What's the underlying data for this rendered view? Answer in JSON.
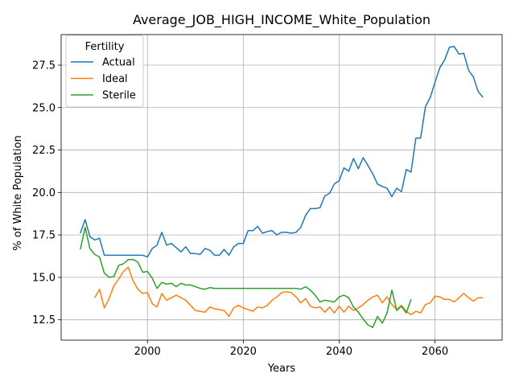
{
  "chart_data": {
    "type": "line",
    "title": "Average_JOB_HIGH_INCOME_White_Population",
    "xlabel": "Years",
    "ylabel": "% of White Population",
    "xlim": [
      1982,
      2074
    ],
    "ylim": [
      11.3,
      29.3
    ],
    "xticks": [
      2000,
      2020,
      2040,
      2060
    ],
    "yticks": [
      12.5,
      15.0,
      17.5,
      20.0,
      22.5,
      25.0,
      27.5
    ],
    "grid": true,
    "legend": {
      "title": "Fertility",
      "placement": "top-left"
    },
    "series": [
      {
        "name": "Actual",
        "color": "#1f77b4",
        "points": [
          [
            1986,
            17.6
          ],
          [
            1987,
            18.4
          ],
          [
            1988,
            17.4
          ],
          [
            1989,
            17.2
          ],
          [
            1990,
            17.3
          ],
          [
            1991,
            16.3
          ],
          [
            1992,
            16.3
          ],
          [
            1993,
            16.3
          ],
          [
            1994,
            16.3
          ],
          [
            1995,
            16.3
          ],
          [
            1996,
            16.3
          ],
          [
            1997,
            16.3
          ],
          [
            1998,
            16.3
          ],
          [
            1999,
            16.3
          ],
          [
            2000,
            16.2
          ],
          [
            2001,
            16.7
          ],
          [
            2002,
            16.9
          ],
          [
            2003,
            17.65
          ],
          [
            2004,
            16.9
          ],
          [
            2005,
            17.0
          ],
          [
            2006,
            16.75
          ],
          [
            2007,
            16.5
          ],
          [
            2008,
            16.8
          ],
          [
            2009,
            16.4
          ],
          [
            2010,
            16.4
          ],
          [
            2011,
            16.35
          ],
          [
            2012,
            16.7
          ],
          [
            2013,
            16.6
          ],
          [
            2014,
            16.3
          ],
          [
            2015,
            16.3
          ],
          [
            2016,
            16.65
          ],
          [
            2017,
            16.3
          ],
          [
            2018,
            16.8
          ],
          [
            2019,
            17.0
          ],
          [
            2020,
            17.0
          ],
          [
            2021,
            17.75
          ],
          [
            2022,
            17.75
          ],
          [
            2023,
            18.0
          ],
          [
            2024,
            17.6
          ],
          [
            2025,
            17.7
          ],
          [
            2026,
            17.75
          ],
          [
            2027,
            17.5
          ],
          [
            2028,
            17.65
          ],
          [
            2029,
            17.65
          ],
          [
            2030,
            17.6
          ],
          [
            2031,
            17.65
          ],
          [
            2032,
            17.95
          ],
          [
            2033,
            18.65
          ],
          [
            2034,
            19.05
          ],
          [
            2035,
            19.05
          ],
          [
            2036,
            19.1
          ],
          [
            2037,
            19.8
          ],
          [
            2038,
            19.95
          ],
          [
            2039,
            20.5
          ],
          [
            2040,
            20.7
          ],
          [
            2041,
            21.45
          ],
          [
            2042,
            21.25
          ],
          [
            2043,
            22.0
          ],
          [
            2044,
            21.4
          ],
          [
            2045,
            22.05
          ],
          [
            2046,
            21.6
          ],
          [
            2047,
            21.1
          ],
          [
            2048,
            20.5
          ],
          [
            2049,
            20.35
          ],
          [
            2050,
            20.25
          ],
          [
            2051,
            19.75
          ],
          [
            2052,
            20.25
          ],
          [
            2053,
            20.05
          ],
          [
            2054,
            21.35
          ],
          [
            2055,
            21.2
          ],
          [
            2056,
            23.2
          ],
          [
            2057,
            23.2
          ],
          [
            2058,
            25.05
          ],
          [
            2059,
            25.6
          ],
          [
            2060,
            26.5
          ],
          [
            2061,
            27.35
          ],
          [
            2062,
            27.8
          ],
          [
            2063,
            28.55
          ],
          [
            2064,
            28.6
          ],
          [
            2065,
            28.15
          ],
          [
            2066,
            28.2
          ],
          [
            2067,
            27.2
          ],
          [
            2068,
            26.8
          ],
          [
            2069,
            25.95
          ],
          [
            2070,
            25.6
          ]
        ]
      },
      {
        "name": "Ideal",
        "color": "#ff7f0e",
        "points": [
          [
            1989,
            13.8
          ],
          [
            1990,
            14.3
          ],
          [
            1991,
            13.2
          ],
          [
            1992,
            13.75
          ],
          [
            1993,
            14.5
          ],
          [
            1994,
            14.9
          ],
          [
            1995,
            15.35
          ],
          [
            1996,
            15.6
          ],
          [
            1997,
            14.8
          ],
          [
            1998,
            14.3
          ],
          [
            1999,
            14.05
          ],
          [
            2000,
            14.1
          ],
          [
            2001,
            13.45
          ],
          [
            2002,
            13.25
          ],
          [
            2003,
            14.05
          ],
          [
            2004,
            13.65
          ],
          [
            2005,
            13.8
          ],
          [
            2006,
            13.95
          ],
          [
            2007,
            13.8
          ],
          [
            2008,
            13.65
          ],
          [
            2009,
            13.35
          ],
          [
            2010,
            13.05
          ],
          [
            2011,
            13.0
          ],
          [
            2012,
            12.95
          ],
          [
            2013,
            13.25
          ],
          [
            2014,
            13.15
          ],
          [
            2015,
            13.1
          ],
          [
            2016,
            13.05
          ],
          [
            2017,
            12.7
          ],
          [
            2018,
            13.2
          ],
          [
            2019,
            13.35
          ],
          [
            2020,
            13.2
          ],
          [
            2021,
            13.1
          ],
          [
            2022,
            13.0
          ],
          [
            2023,
            13.25
          ],
          [
            2024,
            13.2
          ],
          [
            2025,
            13.35
          ],
          [
            2026,
            13.65
          ],
          [
            2027,
            13.85
          ],
          [
            2028,
            14.1
          ],
          [
            2029,
            14.15
          ],
          [
            2030,
            14.1
          ],
          [
            2031,
            13.85
          ],
          [
            2032,
            13.5
          ],
          [
            2033,
            13.75
          ],
          [
            2034,
            13.3
          ],
          [
            2035,
            13.2
          ],
          [
            2036,
            13.25
          ],
          [
            2037,
            12.95
          ],
          [
            2038,
            13.25
          ],
          [
            2039,
            12.9
          ],
          [
            2040,
            13.3
          ],
          [
            2041,
            12.95
          ],
          [
            2042,
            13.3
          ],
          [
            2043,
            13.05
          ],
          [
            2044,
            13.2
          ],
          [
            2045,
            13.4
          ],
          [
            2046,
            13.65
          ],
          [
            2047,
            13.85
          ],
          [
            2048,
            13.95
          ],
          [
            2049,
            13.5
          ],
          [
            2050,
            13.85
          ],
          [
            2051,
            13.4
          ],
          [
            2052,
            13.1
          ],
          [
            2053,
            13.35
          ],
          [
            2054,
            13.0
          ],
          [
            2055,
            12.8
          ],
          [
            2056,
            13.0
          ],
          [
            2057,
            12.9
          ],
          [
            2058,
            13.4
          ],
          [
            2059,
            13.5
          ],
          [
            2060,
            13.9
          ],
          [
            2061,
            13.85
          ],
          [
            2062,
            13.7
          ],
          [
            2063,
            13.7
          ],
          [
            2064,
            13.55
          ],
          [
            2065,
            13.8
          ],
          [
            2066,
            14.05
          ],
          [
            2067,
            13.8
          ],
          [
            2068,
            13.6
          ],
          [
            2069,
            13.8
          ],
          [
            2070,
            13.8
          ]
        ]
      },
      {
        "name": "Sterile",
        "color": "#2ca02c",
        "points": [
          [
            1986,
            16.65
          ],
          [
            1987,
            17.95
          ],
          [
            1988,
            16.7
          ],
          [
            1989,
            16.35
          ],
          [
            1990,
            16.2
          ],
          [
            1991,
            15.25
          ],
          [
            1992,
            15.0
          ],
          [
            1993,
            15.05
          ],
          [
            1994,
            15.7
          ],
          [
            1995,
            15.8
          ],
          [
            1996,
            16.05
          ],
          [
            1997,
            16.05
          ],
          [
            1998,
            15.9
          ],
          [
            1999,
            15.3
          ],
          [
            2000,
            15.35
          ],
          [
            2001,
            14.95
          ],
          [
            2002,
            14.35
          ],
          [
            2003,
            14.7
          ],
          [
            2004,
            14.6
          ],
          [
            2005,
            14.65
          ],
          [
            2006,
            14.45
          ],
          [
            2007,
            14.65
          ],
          [
            2008,
            14.55
          ],
          [
            2009,
            14.55
          ],
          [
            2010,
            14.45
          ],
          [
            2011,
            14.35
          ],
          [
            2012,
            14.3
          ],
          [
            2013,
            14.4
          ],
          [
            2014,
            14.35
          ],
          [
            2015,
            14.35
          ],
          [
            2016,
            14.35
          ],
          [
            2017,
            14.35
          ],
          [
            2018,
            14.35
          ],
          [
            2019,
            14.35
          ],
          [
            2020,
            14.35
          ],
          [
            2021,
            14.35
          ],
          [
            2022,
            14.35
          ],
          [
            2023,
            14.35
          ],
          [
            2024,
            14.35
          ],
          [
            2025,
            14.35
          ],
          [
            2026,
            14.35
          ],
          [
            2027,
            14.35
          ],
          [
            2028,
            14.35
          ],
          [
            2029,
            14.35
          ],
          [
            2030,
            14.35
          ],
          [
            2031,
            14.35
          ],
          [
            2032,
            14.3
          ],
          [
            2033,
            14.45
          ],
          [
            2034,
            14.25
          ],
          [
            2035,
            13.95
          ],
          [
            2036,
            13.55
          ],
          [
            2037,
            13.65
          ],
          [
            2038,
            13.6
          ],
          [
            2039,
            13.55
          ],
          [
            2040,
            13.85
          ],
          [
            2041,
            13.95
          ],
          [
            2042,
            13.8
          ],
          [
            2043,
            13.25
          ],
          [
            2044,
            12.95
          ],
          [
            2045,
            12.55
          ],
          [
            2046,
            12.2
          ],
          [
            2047,
            12.05
          ],
          [
            2048,
            12.7
          ],
          [
            2049,
            12.3
          ],
          [
            2050,
            12.9
          ],
          [
            2051,
            14.25
          ],
          [
            2052,
            13.05
          ],
          [
            2053,
            13.3
          ],
          [
            2054,
            12.9
          ],
          [
            2055,
            13.7
          ]
        ]
      }
    ]
  }
}
